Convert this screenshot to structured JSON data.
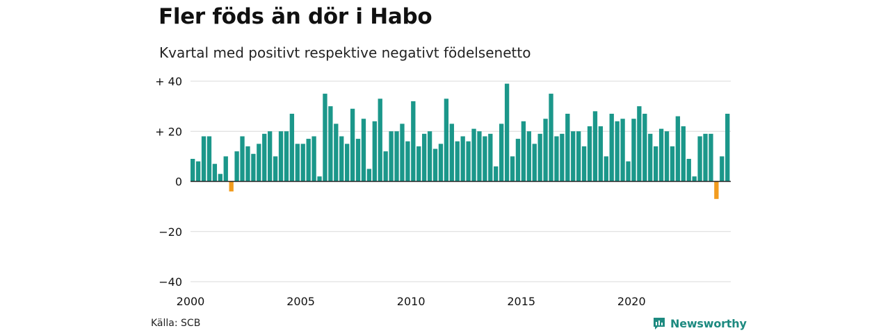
{
  "title": "Fler föds än dör i Habo",
  "subtitle": "Kvartal med positivt respektive negativt födelsenetto",
  "source": "Källa: SCB",
  "brand": "Newsworthy",
  "colors": {
    "positive": "#1b978a",
    "negative": "#f29c1f",
    "grid": "#d9d9d9",
    "brand": "#1d8a80"
  },
  "chart_data": {
    "type": "bar",
    "x_start": "2000 Q1",
    "x_end": "2024 Q2",
    "x_ticks": [
      "2000",
      "2005",
      "2010",
      "2015",
      "2020"
    ],
    "y_ticks": [
      "+ 40",
      "+ 20",
      "0",
      "−20",
      "−40"
    ],
    "ylim": [
      -40,
      40
    ],
    "grid": true,
    "series": [
      {
        "values": [
          9,
          8,
          18,
          18,
          7,
          3,
          10,
          -4,
          12,
          18,
          14,
          11,
          15,
          19,
          20,
          10,
          20,
          20,
          27,
          15,
          15,
          17,
          18,
          2,
          35,
          30,
          23,
          18,
          15,
          29,
          17,
          25,
          5,
          24,
          33,
          12,
          20,
          20,
          23,
          16,
          32,
          14,
          19,
          20,
          13,
          15,
          33,
          23,
          16,
          18,
          16,
          21,
          20,
          18,
          19,
          6,
          23,
          39,
          10,
          17,
          24,
          20,
          15,
          19,
          25,
          35,
          18,
          19,
          27,
          20,
          20,
          14,
          22,
          28,
          22,
          10,
          27,
          24,
          25,
          8,
          25,
          30,
          27,
          19,
          14,
          21,
          20,
          14,
          26,
          22,
          9,
          2,
          18,
          19,
          19,
          -7,
          10,
          27
        ]
      }
    ]
  }
}
